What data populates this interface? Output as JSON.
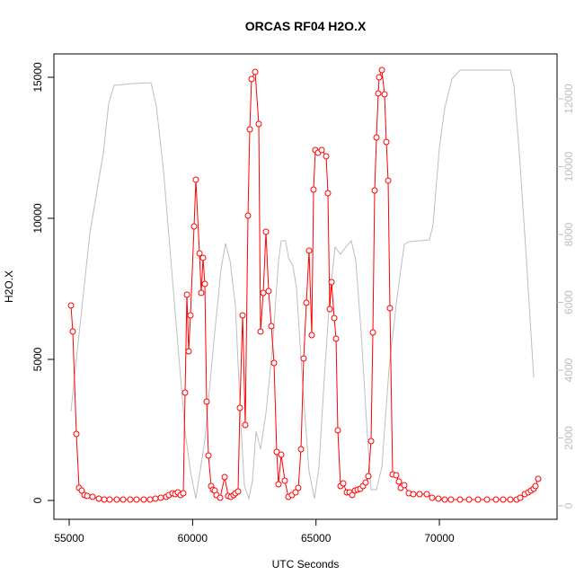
{
  "chart_data": {
    "type": "line",
    "title": "ORCAS RF04 H2O.X",
    "x_label": "UTC Seconds",
    "y_label": "H2O.X",
    "xlim": [
      54381,
      74767
    ],
    "ylim": [
      -669,
      15828
    ],
    "y2lim": [
      -397,
      13325
    ],
    "xticks": [
      55000,
      60000,
      65000,
      70000
    ],
    "yticks": [
      0,
      5000,
      10000,
      15000
    ],
    "y2ticks": [
      0,
      2000,
      4000,
      6000,
      8000,
      10000,
      12000
    ],
    "y2_tick_color": "#bebebe",
    "series": [
      {
        "color": "#bebebe",
        "axis": "y2",
        "x": [
          55073,
          55291,
          55837,
          56383,
          56602,
          56820,
          57585,
          58313,
          58531,
          58822,
          59332,
          59696,
          59915,
          60133,
          60497,
          60861,
          61152,
          61334,
          61516,
          61735,
          61953,
          62099,
          62281,
          62426,
          62572,
          62754,
          62972,
          63227,
          63481,
          63590,
          63772,
          63882,
          64064,
          64210,
          64464,
          64720,
          64938,
          65120,
          65339,
          65557,
          65776,
          65994,
          66212,
          66431,
          66613,
          66832,
          67050,
          67232,
          67450,
          67670,
          67960,
          68288,
          68578,
          68760,
          69197,
          69598,
          69743,
          69998,
          70216,
          70507,
          70835,
          71855,
          72874,
          73020,
          73238,
          73530,
          73820
        ],
        "values": [
          2781,
          4318,
          8026,
          10410,
          11867,
          12397,
          12450,
          12477,
          11788,
          9881,
          5377,
          2198,
          1007,
          212,
          1934,
          4848,
          6967,
          7735,
          7232,
          5907,
          2464,
          609,
          212,
          742,
          2199,
          1669,
          2728,
          4583,
          7232,
          7814,
          7814,
          7311,
          7073,
          6437,
          3523,
          1007,
          212,
          1139,
          3788,
          6172,
          7629,
          7417,
          7629,
          7814,
          7232,
          5113,
          2464,
          477,
          477,
          1139,
          4053,
          6172,
          7709,
          7788,
          7814,
          7841,
          8291,
          10543,
          11735,
          12583,
          12848,
          12848,
          12848,
          12397,
          10410,
          7232,
          3788
        ]
      },
      {
        "color": "#ff0000",
        "markers": true,
        "x": [
          55073,
          55146,
          55291,
          55400,
          55510,
          55620,
          55728,
          55946,
          56200,
          56420,
          56640,
          56930,
          57184,
          57475,
          57730,
          58020,
          58276,
          58495,
          58713,
          58932,
          59040,
          59186,
          59295,
          59405,
          59514,
          59623,
          59696,
          59770,
          59842,
          59915,
          60060,
          60133,
          60280,
          60350,
          60424,
          60497,
          60570,
          60643,
          60752,
          60825,
          60898,
          60970,
          61116,
          61300,
          61443,
          61552,
          61662,
          61735,
          61844,
          61917,
          62026,
          62135,
          62244,
          62317,
          62390,
          62535,
          62681,
          62754,
          62863,
          62972,
          63081,
          63190,
          63300,
          63408,
          63481,
          63590,
          63736,
          63882,
          64027,
          64173,
          64282,
          64392,
          64500,
          64610,
          64720,
          64828,
          64900,
          64974,
          65083,
          65230,
          65412,
          65484,
          65557,
          65630,
          65740,
          65812,
          65885,
          65994,
          66103,
          66250,
          66360,
          66467,
          66578,
          66686,
          66794,
          66905,
          67013,
          67122,
          67232,
          67305,
          67377,
          67450,
          67523,
          67560,
          67670,
          67776,
          67850,
          67923,
          67996,
          68105,
          68250,
          68360,
          68433,
          68578,
          68760,
          68942,
          69197,
          69488,
          69706,
          69961,
          70216,
          70470,
          70835,
          71200,
          71563,
          71928,
          72292,
          72583,
          72874,
          73130,
          73275,
          73457,
          73602,
          73711,
          73820,
          73893,
          74002
        ],
        "values": [
          6911,
          5988,
          2357,
          446,
          350,
          191,
          160,
          127,
          64,
          32,
          32,
          32,
          32,
          32,
          32,
          32,
          32,
          64,
          96,
          127,
          191,
          255,
          223,
          287,
          191,
          255,
          3822,
          7294,
          5287,
          6561,
          9714,
          11370,
          8759,
          7357,
          8600,
          7676,
          3504,
          1593,
          510,
          382,
          350,
          191,
          96,
          828,
          160,
          127,
          191,
          255,
          318,
          3280,
          6561,
          2675,
          10096,
          13154,
          14937,
          15192,
          13345,
          5988,
          7357,
          9523,
          7420,
          6179,
          4873,
          1720,
          573,
          1624,
          701,
          127,
          191,
          287,
          446,
          1815,
          5032,
          7007,
          8854,
          5860,
          11020,
          12421,
          12326,
          12421,
          12199,
          10893,
          6784,
          7739,
          6466,
          5733,
          2484,
          510,
          605,
          287,
          287,
          191,
          350,
          382,
          414,
          510,
          637,
          860,
          2102,
          5956,
          10988,
          12867,
          14428,
          15001,
          15256,
          14396,
          12708,
          11339,
          6816,
          924,
          892,
          669,
          446,
          541,
          255,
          223,
          223,
          223,
          96,
          64,
          32,
          32,
          32,
          32,
          32,
          32,
          32,
          32,
          32,
          32,
          96,
          223,
          287,
          350,
          414,
          510,
          764
        ]
      }
    ]
  }
}
